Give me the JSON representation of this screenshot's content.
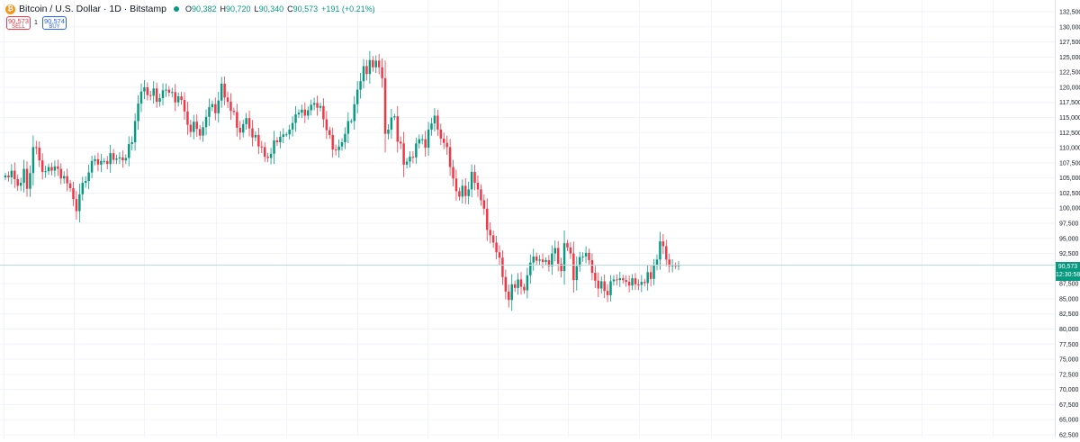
{
  "header": {
    "title": "Bitcoin / U.S. Dollar · 1D · Bitstamp",
    "ohlc": [
      {
        "key": "O",
        "value": "90,382"
      },
      {
        "key": "H",
        "value": "90,720"
      },
      {
        "key": "L",
        "value": "90,340"
      },
      {
        "key": "C",
        "value": "90,573"
      }
    ],
    "change": "+191 (+0.21%)",
    "coin_icon": "bitcoin-icon",
    "coin_symbol": "₿"
  },
  "trade": {
    "sell_price": "90,573",
    "sell_label": "SELL",
    "spread": "1",
    "buy_price": "90,574",
    "buy_label": "BUY"
  },
  "price_tag": {
    "price": "90,573",
    "countdown": "12:30:58"
  },
  "colors": {
    "up": "#089981",
    "down": "#f23645",
    "last_price_line": "#b2dfdb",
    "grid": "#f0f3fa",
    "axis_text": "#131722"
  },
  "chart_data": {
    "type": "candlestick",
    "y_axis": {
      "side": "right",
      "ticks": [
        "132,500",
        "130,000",
        "127,500",
        "125,000",
        "122,500",
        "120,000",
        "117,500",
        "115,000",
        "112,500",
        "110,000",
        "107,500",
        "105,000",
        "102,500",
        "100,000",
        "97,500",
        "95,000",
        "92,500",
        "87,500",
        "85,000",
        "82,500",
        "80,000",
        "77,500",
        "75,000",
        "72,500",
        "70,000",
        "67,500",
        "65,000",
        "62,500"
      ],
      "range": [
        62500,
        132500
      ]
    },
    "last_price": 90573,
    "grid": true,
    "candles_close": [
      105400,
      105100,
      106200,
      104800,
      103700,
      104200,
      106500,
      103200,
      105800,
      110100,
      110000,
      107900,
      106000,
      106100,
      106800,
      106200,
      106900,
      106500,
      104900,
      105300,
      104100,
      103300,
      101500,
      99500,
      102300,
      104200,
      104500,
      105900,
      107800,
      108100,
      107200,
      107800,
      107800,
      107300,
      109100,
      108000,
      108200,
      108400,
      107900,
      108300,
      110600,
      110900,
      114400,
      117300,
      119300,
      120000,
      118700,
      118600,
      119800,
      117600,
      118200,
      119500,
      119600,
      119100,
      119200,
      117500,
      118500,
      117900,
      116000,
      113800,
      112600,
      114300,
      113100,
      112000,
      113400,
      115100,
      116700,
      117200,
      115700,
      117800,
      120600,
      118300,
      117600,
      116100,
      115900,
      113300,
      112500,
      113900,
      114900,
      113200,
      111700,
      112100,
      110200,
      110100,
      108500,
      108300,
      109000,
      111200,
      110900,
      111800,
      112200,
      112200,
      113000,
      114100,
      115500,
      115800,
      116300,
      115300,
      116200,
      117100,
      117400,
      116600,
      116900,
      114700,
      112900,
      112100,
      109700,
      109600,
      110200,
      110900,
      112300,
      114400,
      114400,
      117200,
      119600,
      121000,
      123500,
      122200,
      124500,
      123300,
      124400,
      123300,
      121500,
      112300,
      113000,
      115000,
      115200,
      111000,
      110700,
      107200,
      107700,
      108500,
      108400,
      110700,
      111400,
      111400,
      110000,
      113000,
      114000,
      115300,
      113000,
      111500,
      110800,
      110100,
      106800,
      104900,
      102800,
      101900,
      103700,
      102000,
      103100,
      106000,
      104200,
      103100,
      101300,
      99900,
      96400,
      95500,
      94300,
      92700,
      91800,
      88600,
      86200,
      84800,
      87400,
      86800,
      88200,
      87000,
      86400,
      88900,
      91000,
      92000,
      91300,
      91500,
      91100,
      91400,
      90400,
      92500,
      93400,
      90800,
      89600,
      94200,
      93500,
      92500,
      88100,
      90400,
      91900,
      92000,
      92600,
      91400,
      89300,
      88000,
      86700,
      87900,
      86300,
      85600,
      87900,
      88200,
      88100,
      88400,
      88100,
      87800,
      87200,
      88400,
      87400,
      87300,
      87800,
      87600,
      89400,
      88300,
      90600,
      91500,
      94500,
      93700,
      91500,
      90400,
      90600,
      90400,
      90600
    ]
  }
}
